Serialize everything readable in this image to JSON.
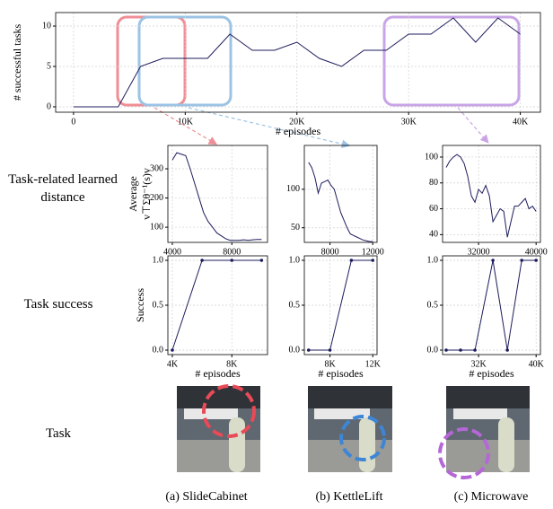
{
  "labels": {
    "rows": [
      "Task-related learned distance",
      "Task success",
      "Task"
    ],
    "captions": [
      "(a) SlideCabinet",
      "(b) KettleLift",
      "(c) Microwave"
    ]
  },
  "chart_data": [
    {
      "type": "line",
      "xlabel": "# episodes",
      "ylabel": "# successful tasks",
      "x": [
        0,
        4000,
        6000,
        8000,
        10000,
        12000,
        14000,
        16000,
        18000,
        20000,
        22000,
        24000,
        26000,
        28000,
        30000,
        32000,
        34000,
        36000,
        38000,
        40000
      ],
      "series": [
        {
          "color": "#1c1c5c",
          "values": [
            0,
            0,
            5,
            6,
            6,
            6,
            9,
            7,
            7,
            8,
            6,
            5,
            7,
            7,
            9,
            9,
            11,
            8,
            11,
            9
          ]
        }
      ],
      "xlim": [
        -1600,
        41800
      ],
      "ylim": [
        -0.67,
        11.67
      ],
      "xticks": [
        0,
        {
          "value": 10000,
          "label": "10K"
        },
        {
          "value": 20000,
          "label": "20K"
        },
        {
          "value": 30000,
          "label": "30K"
        },
        {
          "value": 40000,
          "label": "40K"
        }
      ],
      "yticks": [
        0,
        5,
        10
      ],
      "grid": true,
      "markers": false
    },
    {
      "type": "line",
      "ylabel": [
        "Average",
        "v⊤Σθ⁻¹(s)v"
      ],
      "x": [
        4000,
        4300,
        4600,
        4900,
        5200,
        5500,
        5800,
        6100,
        6400,
        6700,
        7000,
        7300,
        7600,
        7900,
        8200,
        8500,
        8800,
        9100,
        9400,
        9700,
        10000
      ],
      "series": [
        {
          "color": "#1c1c5c",
          "values": [
            330,
            355,
            350,
            345,
            300,
            250,
            200,
            150,
            120,
            100,
            80,
            70,
            60,
            55,
            55,
            55,
            57,
            55,
            57,
            58,
            58
          ]
        }
      ],
      "xlim": [
        3700,
        10400
      ],
      "ylim": [
        48,
        380
      ],
      "xticks": [
        4000,
        8000
      ],
      "yticks": [
        100,
        200,
        300
      ],
      "grid": true,
      "markers": false
    },
    {
      "type": "line",
      "x": [
        6000,
        6300,
        6600,
        6900,
        7200,
        7500,
        7800,
        8100,
        8400,
        8700,
        9000,
        9300,
        9600,
        9900,
        10200,
        10500,
        10800,
        11100,
        11400,
        11700,
        12000
      ],
      "series": [
        {
          "color": "#1c1c5c",
          "values": [
            135,
            128,
            115,
            95,
            108,
            110,
            112,
            105,
            100,
            85,
            70,
            60,
            50,
            42,
            40,
            38,
            36,
            34,
            33,
            32,
            32
          ]
        }
      ],
      "xlim": [
        5600,
        12400
      ],
      "ylim": [
        31,
        157
      ],
      "xticks": [
        8000,
        12000
      ],
      "yticks": [
        50,
        100
      ],
      "grid": true,
      "markers": false
    },
    {
      "type": "line",
      "x": [
        27500,
        28000,
        28500,
        29000,
        29500,
        30000,
        30500,
        31000,
        31500,
        32000,
        32500,
        33000,
        33500,
        34000,
        34500,
        35000,
        35500,
        36000,
        36500,
        37000,
        37500,
        38000,
        38500,
        39000,
        39500,
        40000
      ],
      "series": [
        {
          "color": "#1c1c5c",
          "values": [
            92,
            97,
            100,
            102,
            100,
            95,
            85,
            70,
            65,
            75,
            72,
            78,
            70,
            50,
            55,
            60,
            58,
            38,
            50,
            62,
            62,
            65,
            68,
            60,
            62,
            58
          ]
        }
      ],
      "xlim": [
        27000,
        40600
      ],
      "ylim": [
        34,
        109
      ],
      "xticks": [
        32000,
        40000
      ],
      "yticks": [
        40,
        60,
        80,
        100
      ],
      "grid": true,
      "markers": false
    },
    {
      "type": "line",
      "xlabel": "# episodes",
      "ylabel": "Success",
      "x": [
        4000,
        6000,
        8000,
        10000
      ],
      "series": [
        {
          "color": "#1c1c5c",
          "values": [
            0,
            1,
            1,
            1
          ]
        }
      ],
      "xlim": [
        3700,
        10400
      ],
      "ylim": [
        -0.05,
        1.05
      ],
      "xticks": [
        {
          "value": 4000,
          "label": "4K"
        },
        {
          "value": 8000,
          "label": "8K"
        }
      ],
      "yticks": [
        {
          "value": 0,
          "label": "0.0"
        },
        {
          "value": 0.5,
          "label": "0.5"
        },
        {
          "value": 1,
          "label": "1.0"
        }
      ],
      "grid": true,
      "markers": true
    },
    {
      "type": "line",
      "xlabel": "# episodes",
      "x": [
        6000,
        8000,
        10000,
        12000
      ],
      "series": [
        {
          "color": "#1c1c5c",
          "values": [
            0,
            0,
            1,
            1
          ]
        }
      ],
      "xlim": [
        5600,
        12400
      ],
      "ylim": [
        -0.05,
        1.05
      ],
      "xticks": [
        {
          "value": 8000,
          "label": "8K"
        },
        {
          "value": 12000,
          "label": "12K"
        }
      ],
      "yticks": [
        {
          "value": 0,
          "label": "0.0"
        },
        {
          "value": 0.5,
          "label": "0.5"
        },
        {
          "value": 1,
          "label": "1.0"
        }
      ],
      "grid": true,
      "markers": true
    },
    {
      "type": "line",
      "xlabel": "# episodes",
      "x": [
        27500,
        29500,
        31500,
        34000,
        36000,
        38000,
        40000
      ],
      "series": [
        {
          "color": "#1c1c5c",
          "values": [
            0,
            0,
            0,
            1,
            0,
            1,
            1
          ]
        }
      ],
      "xlim": [
        27000,
        40600
      ],
      "ylim": [
        -0.05,
        1.05
      ],
      "xticks": [
        {
          "value": 32000,
          "label": "32K"
        },
        {
          "value": 40000,
          "label": "40K"
        }
      ],
      "yticks": [
        {
          "value": 0,
          "label": "0.0"
        },
        {
          "value": 0.5,
          "label": "0.5"
        },
        {
          "value": 1,
          "label": "1.0"
        }
      ],
      "grid": true,
      "markers": true
    }
  ]
}
